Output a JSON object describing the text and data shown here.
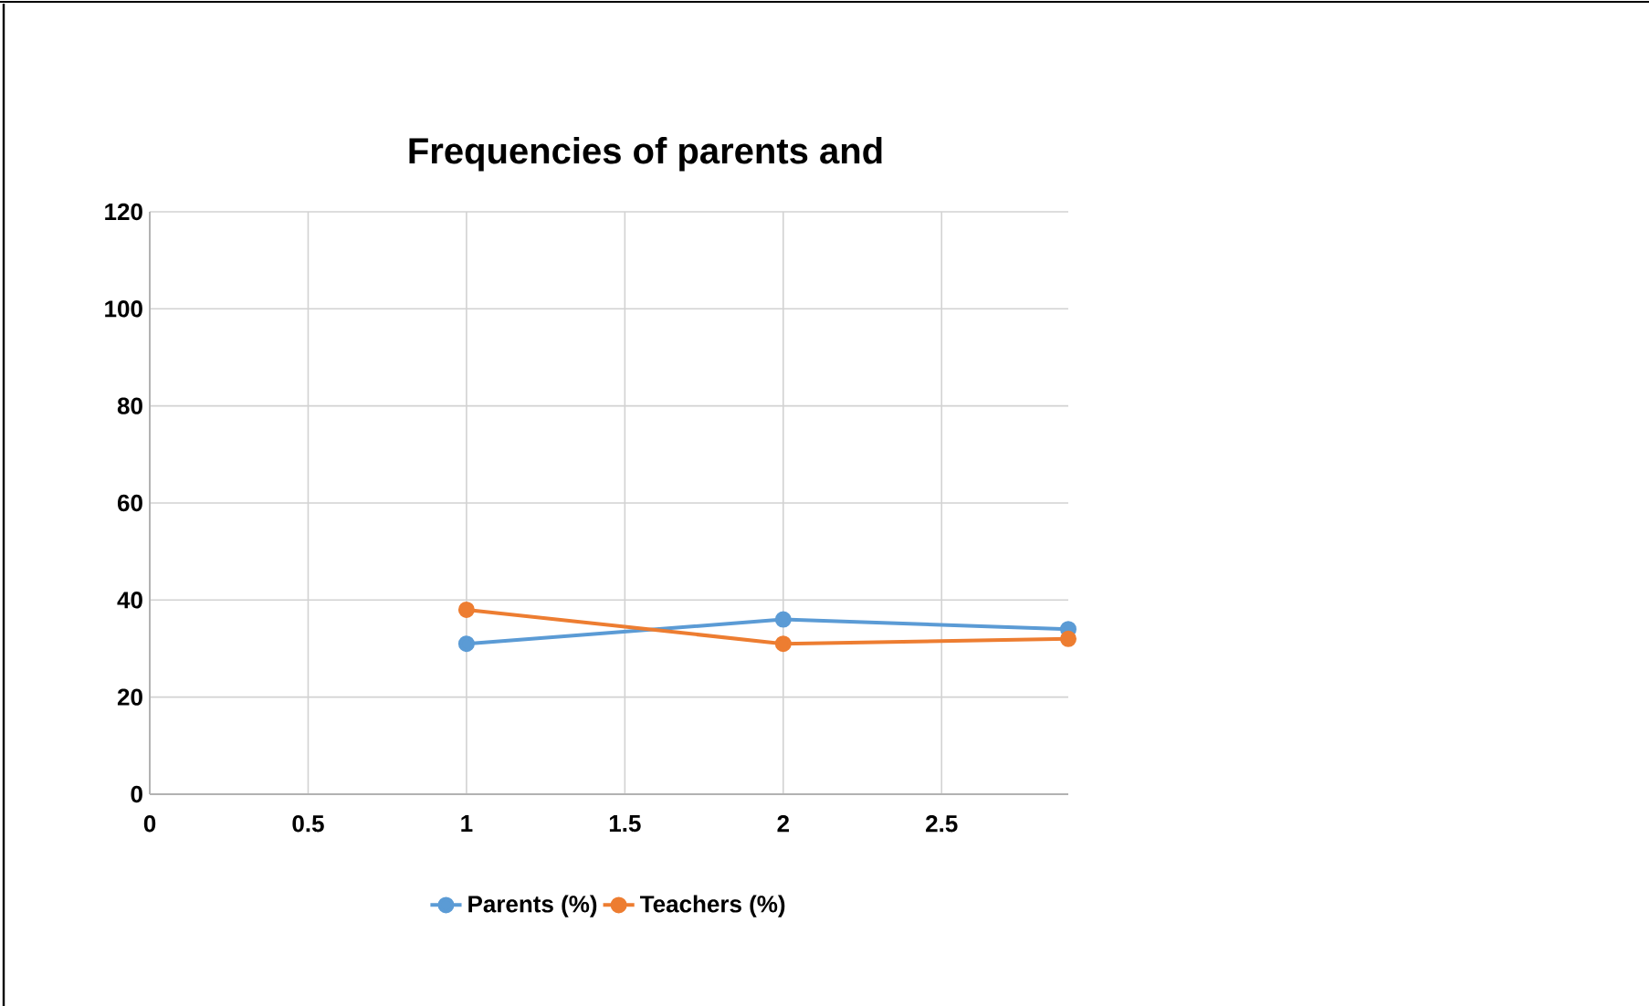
{
  "chart_data": {
    "type": "line",
    "title": "Frequencies of parents and",
    "xlim": [
      0,
      2.9
    ],
    "xticks": [
      0,
      0.5,
      1,
      1.5,
      2,
      2.5
    ],
    "ylim": [
      0,
      120
    ],
    "yticks": [
      0,
      20,
      40,
      60,
      80,
      100,
      120
    ],
    "grid": true,
    "legend": "bottom",
    "marker": "circle",
    "series": [
      {
        "name": "Parents (%)",
        "color": "#5b9bd5",
        "x": [
          1,
          2,
          2.9
        ],
        "values": [
          31,
          36,
          34
        ]
      },
      {
        "name": "Teachers (%)",
        "color": "#ed7d31",
        "x": [
          1,
          2,
          2.9
        ],
        "values": [
          38,
          31,
          32
        ]
      }
    ]
  }
}
